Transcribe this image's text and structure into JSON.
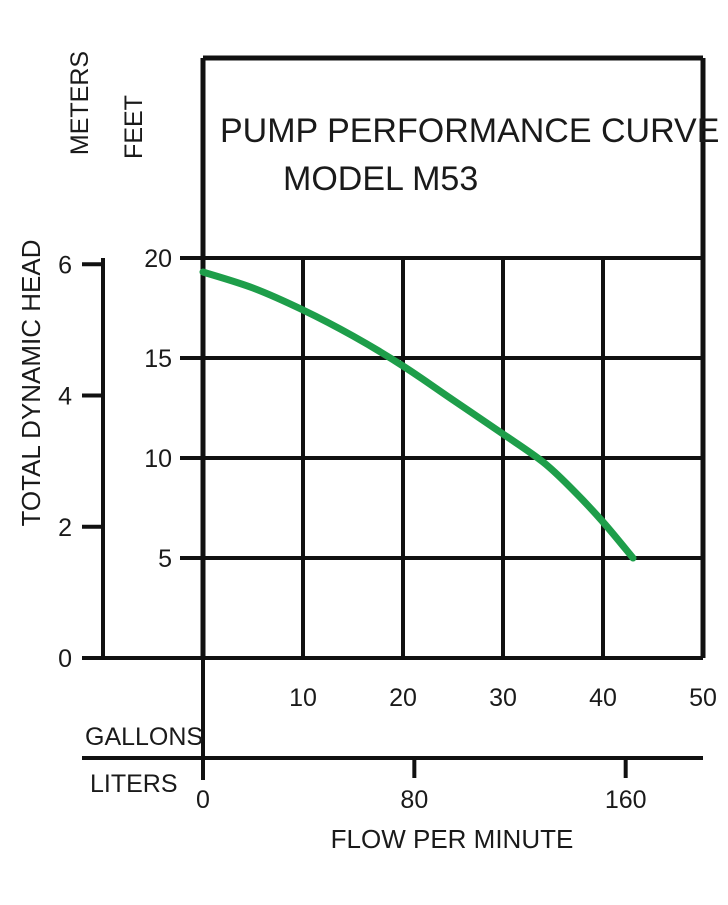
{
  "chart_data": {
    "type": "line",
    "title": "PUMP PERFORMANCE CURVE",
    "subtitle": "MODEL M53",
    "xlabel": "FLOW PER MINUTE",
    "ylabel": "TOTAL DYNAMIC HEAD",
    "x_units": {
      "gallons": {
        "label": "GALLONS",
        "ticks": [
          "10",
          "20",
          "30",
          "40",
          "50"
        ],
        "tick_values": [
          10,
          20,
          30,
          40,
          50
        ]
      },
      "liters": {
        "label": "LITERS",
        "ticks": [
          "0",
          "80",
          "160"
        ],
        "tick_values": [
          0,
          80,
          160
        ]
      }
    },
    "y_units": {
      "feet": {
        "label": "FEET",
        "ticks": [
          "5",
          "10",
          "15",
          "20"
        ],
        "tick_values": [
          5,
          10,
          15,
          20
        ]
      },
      "meters": {
        "label": "METERS",
        "ticks": [
          "0",
          "2",
          "4",
          "6"
        ],
        "tick_values": [
          0,
          2,
          4,
          6
        ]
      }
    },
    "xlim": [
      0,
      50
    ],
    "ylim": [
      0,
      20
    ],
    "grid": true,
    "series": [
      {
        "color": "#1e9e4a",
        "x": [
          0,
          5,
          10,
          15,
          20,
          25,
          30,
          34,
          37,
          40,
          43
        ],
        "y": [
          19.3,
          18.5,
          17.4,
          16.1,
          14.6,
          12.9,
          11.2,
          9.8,
          8.4,
          6.8,
          5
        ]
      }
    ]
  }
}
